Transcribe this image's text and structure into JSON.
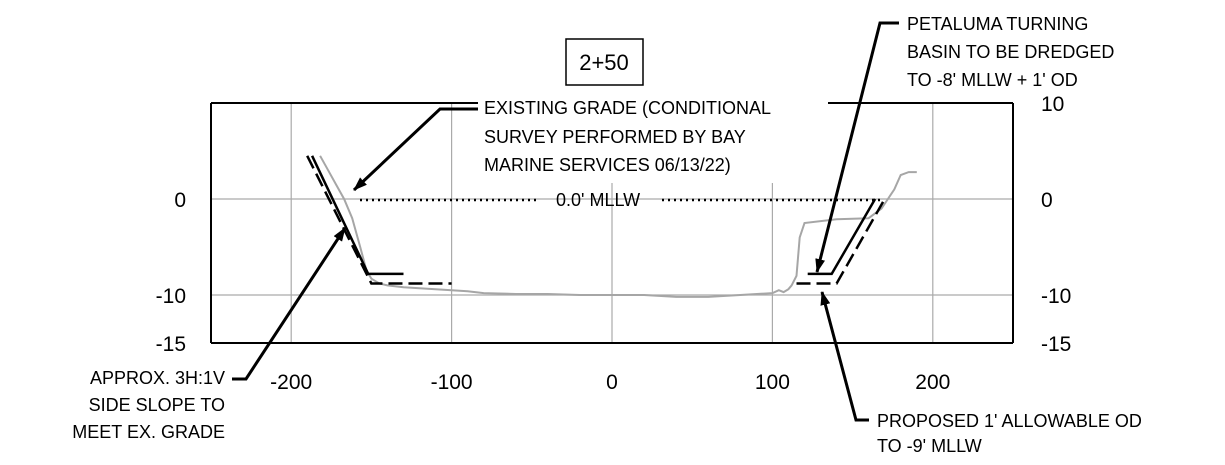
{
  "chart_data": {
    "type": "line",
    "title": "",
    "station_label": "2+50",
    "xlim": [
      -250,
      250
    ],
    "ylim": [
      -15,
      10
    ],
    "grid": true,
    "x_ticks": [
      -200,
      -100,
      0,
      100,
      200
    ],
    "x_tick_labels": [
      "-200",
      "-100",
      "0",
      "100",
      "200"
    ],
    "y_ticks": [
      0,
      -10
    ],
    "y_tick_labels_left": [
      "0",
      "-10",
      "-15"
    ],
    "y_tick_labels_right": [
      "10",
      "0",
      "-10",
      "-15"
    ],
    "datum_label": "0.0' MLLW",
    "series": [
      {
        "style": "solid gray",
        "x": [
          -182,
          -177,
          -172,
          -167,
          -162,
          -157,
          -153,
          -150,
          -145,
          -140,
          -130,
          -120,
          -110,
          -100,
          -90,
          -80,
          -60,
          -40,
          -20,
          0,
          20,
          40,
          60,
          80,
          100,
          104,
          107,
          110,
          112,
          115,
          117,
          120,
          140,
          160,
          168,
          172,
          176,
          180,
          185,
          190
        ],
        "y": [
          4.5,
          3,
          1.5,
          0,
          -2,
          -5,
          -7.5,
          -8.3,
          -8.8,
          -9,
          -9.2,
          -9.3,
          -9.4,
          -9.5,
          -9.6,
          -9.8,
          -9.9,
          -9.9,
          -10,
          -10,
          -10,
          -10.2,
          -10.2,
          -10,
          -9.8,
          -9.5,
          -9.7,
          -9.4,
          -9,
          -8,
          -4,
          -2.5,
          -2.1,
          -2,
          -1,
          0,
          1,
          2.5,
          2.8,
          2.8
        ]
      },
      {
        "style": "solid black",
        "x": [
          -187,
          -152,
          -130
        ],
        "y": [
          4.5,
          -7.8,
          -7.8
        ]
      },
      {
        "style": "solid black",
        "x": [
          122,
          137,
          164
        ],
        "y": [
          -7.8,
          -7.8,
          0
        ]
      },
      {
        "style": "dashed black",
        "x": [
          -190,
          -150,
          -100
        ],
        "y": [
          4.5,
          -8.8,
          -8.8
        ]
      },
      {
        "style": "dashed black",
        "x": [
          115,
          140,
          170
        ],
        "y": [
          -8.8,
          -8.8,
          0
        ]
      }
    ],
    "annotations": [
      {
        "lines": [
          "EXISTING GRADE (CONDITIONAL",
          "SURVEY PERFORMED BY BAY",
          "MARINE SERVICES 06/13/22)"
        ]
      },
      {
        "lines": [
          "PETALUMA TURNING",
          "BASIN TO BE DREDGED",
          "TO -8' MLLW + 1' OD"
        ]
      },
      {
        "lines": [
          "APPROX. 3H:1V",
          "SIDE SLOPE TO",
          "MEET EX. GRADE"
        ]
      },
      {
        "lines": [
          "PROPOSED 1' ALLOWABLE OD",
          "TO -9' MLLW"
        ]
      }
    ]
  }
}
